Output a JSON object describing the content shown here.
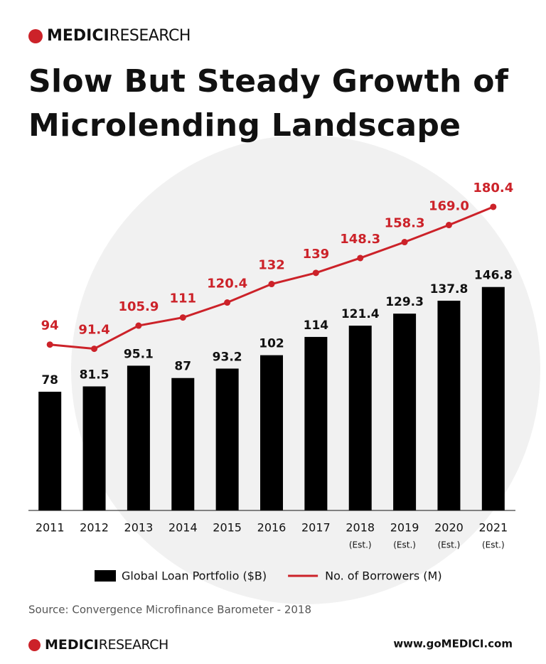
{
  "brand": {
    "name": "MEDICI",
    "suffix": "RESEARCH"
  },
  "chart_data": {
    "type": "bar-line",
    "title": "Slow But Steady Growth of Microlending Landscape",
    "categories": [
      "2011",
      "2012",
      "2013",
      "2014",
      "2015",
      "2016",
      "2017",
      "2018",
      "2019",
      "2020",
      "2021"
    ],
    "category_notes": [
      null,
      null,
      null,
      null,
      null,
      null,
      null,
      "(Est.)",
      "(Est.)",
      "(Est.)",
      "(Est.)"
    ],
    "series": [
      {
        "name": "Global Loan Portfolio ($B)",
        "type": "bar",
        "color": "#000000",
        "values": [
          78,
          81.5,
          95.1,
          87,
          93.2,
          102,
          114,
          121.4,
          129.3,
          137.8,
          146.8
        ]
      },
      {
        "name": "No. of Borrowers (M)",
        "type": "line",
        "axis": "y2",
        "color": "#cc2229",
        "values": [
          94,
          91.4,
          105.9,
          111,
          120.4,
          132,
          139,
          148.3,
          158.3,
          169.0,
          180.4
        ],
        "value_labels": [
          "94",
          "91.4",
          "105.9",
          "111",
          "120.4",
          "132",
          "139",
          "148.3",
          "158.3",
          "169.0",
          "180.4"
        ]
      }
    ],
    "ylim": [
      0,
      220
    ],
    "y2lim": [
      -10,
      200
    ],
    "legend": "bottom",
    "source": "Source: Convergence Microfinance Barometer - 2018"
  },
  "footer": {
    "website": "www.goMEDICI.com"
  }
}
